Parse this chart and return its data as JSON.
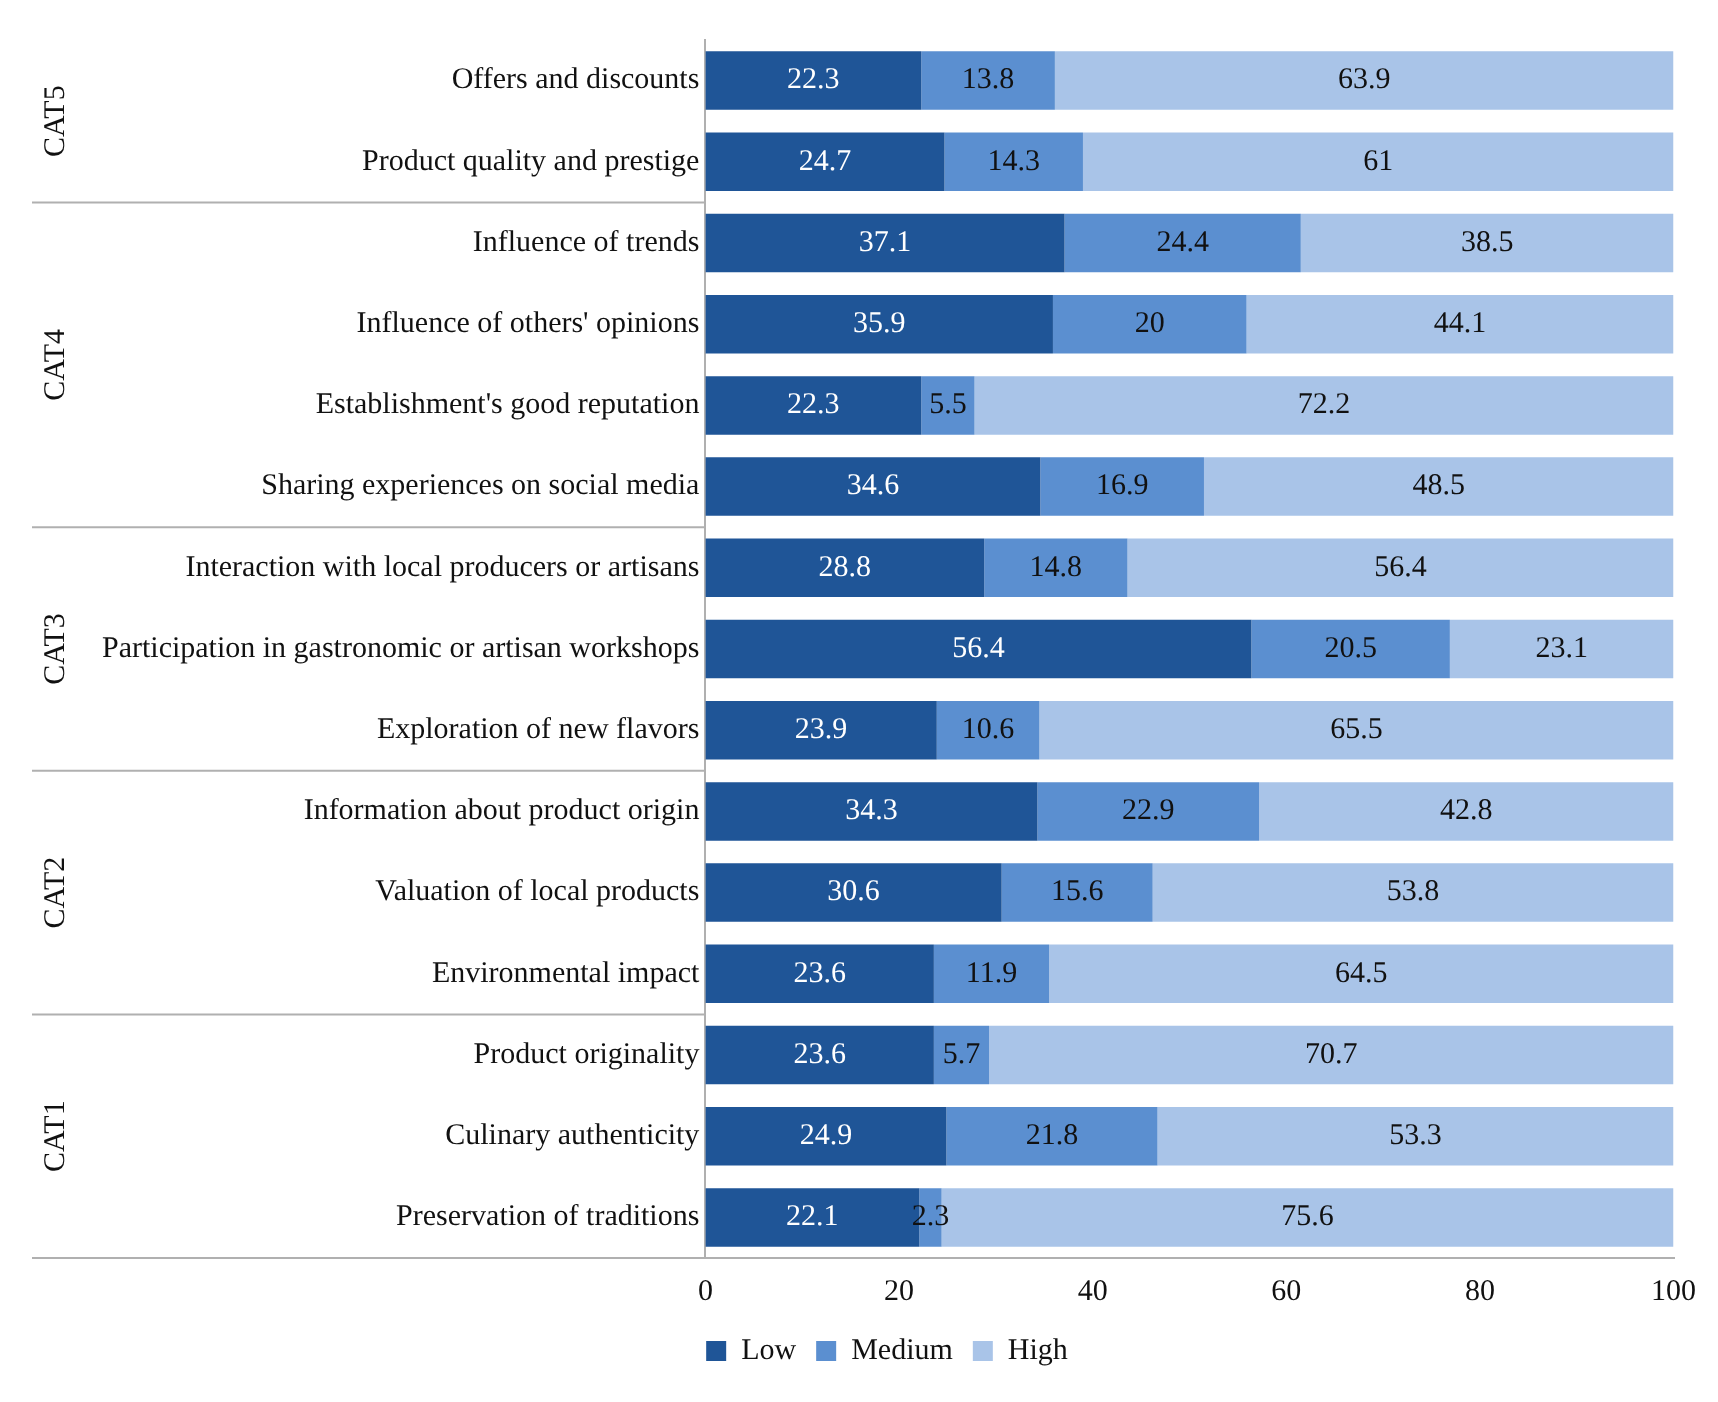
{
  "chart_data": {
    "type": "bar",
    "orientation": "horizontal",
    "stacked": true,
    "data_labels": true,
    "legend": "bottom",
    "grid": false,
    "categories": [
      "Offers and discounts",
      "Product quality and prestige",
      "Influence of trends",
      "Influence of others' opinions",
      "Establishment's good reputation",
      "Sharing experiences on social media",
      "Interaction with local producers or artisans",
      "Participation in gastronomic or artisan workshops",
      "Exploration of new flavors",
      "Information about product origin",
      "Valuation of local products",
      "Environmental impact",
      "Product originality",
      "Culinary authenticity",
      "Preservation of traditions"
    ],
    "series": [
      {
        "name": "Low",
        "color": "#1f5597",
        "values": [
          22.3,
          24.7,
          37.1,
          35.9,
          22.3,
          34.6,
          28.8,
          56.4,
          23.9,
          34.3,
          30.6,
          23.6,
          23.6,
          24.9,
          22.1
        ]
      },
      {
        "name": "Medium",
        "color": "#5b8fd0",
        "values": [
          13.8,
          14.3,
          24.4,
          20,
          5.5,
          16.9,
          14.8,
          20.5,
          10.6,
          22.9,
          15.6,
          11.9,
          5.7,
          21.8,
          2.3
        ]
      },
      {
        "name": "High",
        "color": "#a9c4e8",
        "values": [
          63.9,
          61,
          38.5,
          44.1,
          72.2,
          48.5,
          56.4,
          23.1,
          65.5,
          42.8,
          53.8,
          64.5,
          70.7,
          53.3,
          75.6
        ]
      }
    ],
    "xlim": [
      0,
      100
    ],
    "xticks": [
      0,
      20,
      40,
      60,
      80,
      100
    ],
    "annotations": [
      "CAT5",
      "CAT4",
      "CAT3",
      "CAT2",
      "CAT1"
    ]
  }
}
